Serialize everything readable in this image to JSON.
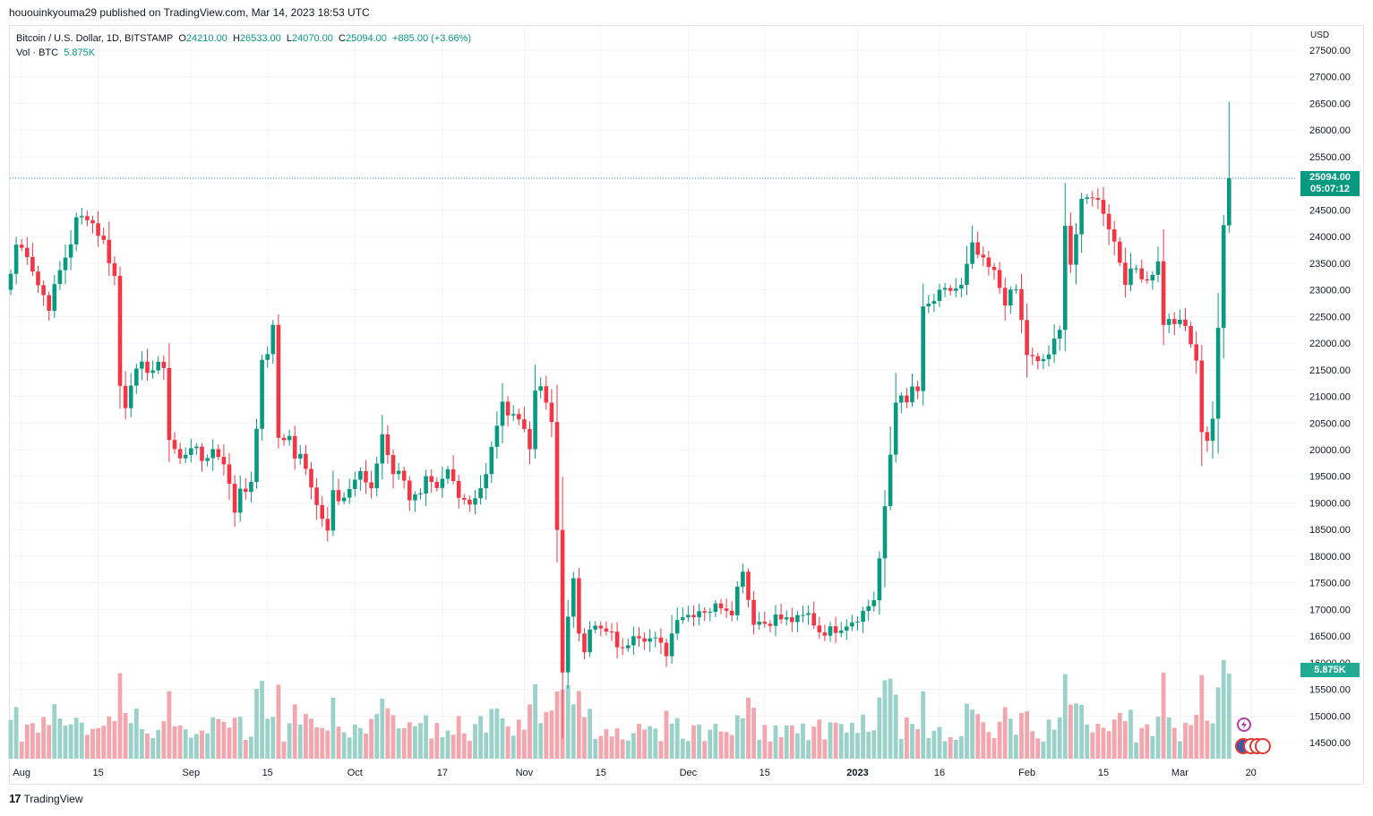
{
  "header": {
    "published_line": "hououinkyouma29 published on TradingView.com, Mar 14, 2023 18:53 UTC"
  },
  "legend": {
    "symbol": "Bitcoin / U.S. Dollar, 1D, BITSTAMP",
    "o_label": "O",
    "o_value": "24210.00",
    "h_label": "H",
    "h_value": "26533.00",
    "l_label": "L",
    "l_value": "24070.00",
    "c_label": "C",
    "c_value": "25094.00",
    "change": "+885.00 (+3.66%)",
    "vol_label": "Vol · BTC",
    "vol_value": "5.875K"
  },
  "price_scale": {
    "currency": "USD",
    "last_price": "25094.00",
    "countdown": "05:07:12",
    "volume_tag": "5.875K"
  },
  "footer": {
    "brand": "TradingView",
    "logo_text": "17"
  },
  "colors": {
    "up": "#089981",
    "down": "#f23645",
    "up_vol": "#9ad1c8",
    "down_vol": "#f4a6ae",
    "grid": "#f0f3fa",
    "text": "#131722"
  },
  "chart_data": {
    "type": "candlestick",
    "symbol": "BTCUSD",
    "interval": "1D",
    "y_ticks": [
      14500,
      15000,
      15500,
      16000,
      16500,
      17000,
      17500,
      18000,
      18500,
      19000,
      19500,
      20000,
      20500,
      21000,
      21500,
      22000,
      22500,
      23000,
      23500,
      24000,
      24500,
      25000,
      25500,
      26000,
      26500,
      27000,
      27500
    ],
    "y_tick_labels": [
      "14500.00",
      "15000.00",
      "15500.00",
      "16000.00",
      "16500.00",
      "17000.00",
      "17500.00",
      "18000.00",
      "18500.00",
      "19000.00",
      "19500.00",
      "20000.00",
      "20500.00",
      "21000.00",
      "21500.00",
      "22000.00",
      "22500.00",
      "23000.00",
      "23500.00",
      "24000.00",
      "24500.00",
      "25000.00",
      "25500.00",
      "26000.00",
      "26500.00",
      "27000.00",
      "27500.00"
    ],
    "ylim": [
      14300,
      27600
    ],
    "x_tick_labels": [
      "Aug",
      "15",
      "Sep",
      "15",
      "Oct",
      "17",
      "Nov",
      "15",
      "Dec",
      "15",
      "2023",
      "16",
      "Feb",
      "15",
      "Mar",
      "20"
    ],
    "x_tick_days": [
      2,
      16,
      33,
      47,
      63,
      79,
      94,
      108,
      124,
      138,
      155,
      170,
      186,
      200,
      214,
      227
    ],
    "close_path": [
      [
        0,
        23300
      ],
      [
        1,
        23850
      ],
      [
        3,
        23700
      ],
      [
        5,
        23100
      ],
      [
        7,
        22700
      ],
      [
        9,
        23350
      ],
      [
        11,
        23900
      ],
      [
        12,
        24300
      ],
      [
        14,
        24400
      ],
      [
        15,
        24250
      ],
      [
        17,
        23900
      ],
      [
        19,
        23250
      ],
      [
        20,
        21200
      ],
      [
        21,
        20850
      ],
      [
        22,
        21300
      ],
      [
        24,
        21550
      ],
      [
        26,
        21500
      ],
      [
        28,
        21600
      ],
      [
        29,
        20200
      ],
      [
        31,
        19800
      ],
      [
        33,
        20100
      ],
      [
        35,
        19800
      ],
      [
        37,
        20000
      ],
      [
        39,
        19800
      ],
      [
        40,
        19300
      ],
      [
        41,
        18850
      ],
      [
        42,
        19300
      ],
      [
        44,
        19300
      ],
      [
        46,
        21600
      ],
      [
        47,
        21800
      ],
      [
        48,
        22400
      ],
      [
        49,
        20200
      ],
      [
        51,
        20200
      ],
      [
        52,
        19800
      ],
      [
        53,
        20000
      ],
      [
        54,
        19700
      ],
      [
        55,
        19300
      ],
      [
        57,
        18800
      ],
      [
        58,
        18500
      ],
      [
        59,
        19200
      ],
      [
        60,
        19000
      ],
      [
        61,
        19000
      ],
      [
        62,
        19300
      ],
      [
        64,
        19600
      ],
      [
        66,
        19200
      ],
      [
        68,
        20300
      ],
      [
        70,
        19600
      ],
      [
        72,
        19500
      ],
      [
        73,
        19100
      ],
      [
        75,
        19100
      ],
      [
        76,
        19400
      ],
      [
        78,
        19200
      ],
      [
        80,
        19600
      ],
      [
        82,
        19200
      ],
      [
        84,
        19000
      ],
      [
        86,
        19300
      ],
      [
        87,
        19500
      ],
      [
        89,
        20500
      ],
      [
        90,
        20800
      ],
      [
        92,
        20700
      ],
      [
        94,
        20400
      ],
      [
        95,
        20100
      ],
      [
        96,
        21000
      ],
      [
        97,
        21200
      ],
      [
        98,
        20800
      ],
      [
        99,
        20500
      ],
      [
        100,
        18500
      ],
      [
        101,
        15900
      ],
      [
        102,
        16800
      ],
      [
        103,
        17500
      ],
      [
        104,
        16600
      ],
      [
        105,
        16300
      ],
      [
        106,
        16700
      ],
      [
        108,
        16600
      ],
      [
        110,
        16500
      ],
      [
        112,
        16200
      ],
      [
        114,
        16600
      ],
      [
        116,
        16500
      ],
      [
        118,
        16400
      ],
      [
        120,
        16200
      ],
      [
        122,
        16900
      ],
      [
        124,
        16900
      ],
      [
        126,
        17000
      ],
      [
        128,
        17000
      ],
      [
        130,
        17100
      ],
      [
        132,
        17000
      ],
      [
        134,
        17800
      ],
      [
        135,
        17200
      ],
      [
        136,
        16800
      ],
      [
        138,
        16750
      ],
      [
        140,
        16850
      ],
      [
        142,
        16800
      ],
      [
        144,
        16800
      ],
      [
        146,
        16900
      ],
      [
        148,
        16600
      ],
      [
        150,
        16600
      ],
      [
        152,
        16700
      ],
      [
        154,
        16800
      ],
      [
        156,
        16950
      ],
      [
        158,
        17200
      ],
      [
        159,
        17950
      ],
      [
        160,
        18850
      ],
      [
        161,
        19900
      ],
      [
        162,
        20900
      ],
      [
        163,
        21100
      ],
      [
        164,
        20800
      ],
      [
        165,
        21150
      ],
      [
        166,
        21100
      ],
      [
        167,
        22600
      ],
      [
        168,
        22700
      ],
      [
        170,
        22900
      ],
      [
        172,
        23000
      ],
      [
        174,
        23050
      ],
      [
        176,
        23800
      ],
      [
        178,
        23500
      ],
      [
        180,
        23300
      ],
      [
        182,
        22800
      ],
      [
        184,
        23000
      ],
      [
        186,
        21800
      ],
      [
        188,
        21600
      ],
      [
        190,
        21800
      ],
      [
        192,
        22200
      ],
      [
        193,
        24300
      ],
      [
        194,
        23500
      ],
      [
        196,
        24600
      ],
      [
        198,
        24800
      ],
      [
        200,
        24500
      ],
      [
        202,
        23900
      ],
      [
        204,
        23200
      ],
      [
        206,
        23400
      ],
      [
        208,
        23200
      ],
      [
        210,
        23500
      ],
      [
        211,
        22400
      ],
      [
        213,
        22400
      ],
      [
        215,
        22300
      ],
      [
        216,
        22000
      ],
      [
        217,
        21600
      ],
      [
        218,
        20400
      ],
      [
        219,
        20200
      ],
      [
        220,
        20600
      ],
      [
        221,
        22200
      ],
      [
        222,
        24200
      ],
      [
        223,
        25094
      ]
    ],
    "last_close": 25094,
    "last_high": 26533,
    "last_low": 24070,
    "last_open": 24210,
    "last_volume": "5.875K",
    "volume_max_k": 10.5,
    "grid": true
  }
}
